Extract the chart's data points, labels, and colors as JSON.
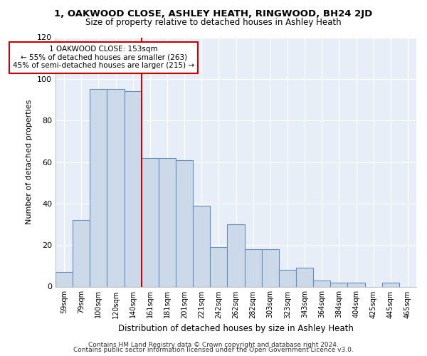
{
  "title1": "1, OAKWOOD CLOSE, ASHLEY HEATH, RINGWOOD, BH24 2JD",
  "title2": "Size of property relative to detached houses in Ashley Heath",
  "xlabel": "Distribution of detached houses by size in Ashley Heath",
  "ylabel": "Number of detached properties",
  "bins": [
    "59sqm",
    "79sqm",
    "100sqm",
    "120sqm",
    "140sqm",
    "161sqm",
    "181sqm",
    "201sqm",
    "221sqm",
    "242sqm",
    "262sqm",
    "282sqm",
    "303sqm",
    "323sqm",
    "343sqm",
    "364sqm",
    "384sqm",
    "404sqm",
    "425sqm",
    "445sqm",
    "465sqm"
  ],
  "bar_heights": [
    7,
    32,
    95,
    95,
    94,
    62,
    62,
    61,
    39,
    19,
    30,
    18,
    18,
    8,
    9,
    3,
    2,
    2,
    0,
    2,
    0
  ],
  "bar_color": "#ccd9e8",
  "bar_edge_color": "#6090c0",
  "vline_x_bin": 5,
  "vline_color": "#cc0000",
  "annotation_text": "1 OAKWOOD CLOSE: 153sqm\n← 55% of detached houses are smaller (263)\n45% of semi-detached houses are larger (215) →",
  "annotation_box_color": "#ffffff",
  "annotation_box_edge": "#cc0000",
  "ylim": [
    0,
    120
  ],
  "yticks": [
    0,
    20,
    40,
    60,
    80,
    100,
    120
  ],
  "footer1": "Contains HM Land Registry data © Crown copyright and database right 2024.",
  "footer2": "Contains public sector information licensed under the Open Government Licence v3.0.",
  "fig_background": "#ffffff",
  "plot_background": "#e8eef8"
}
